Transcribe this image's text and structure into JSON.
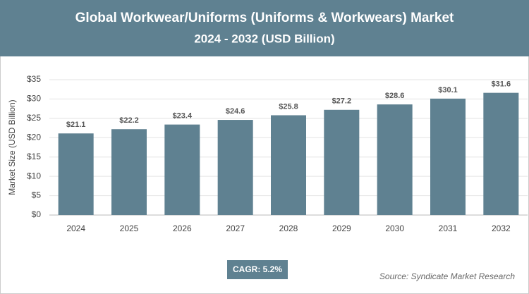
{
  "chart_data": {
    "type": "bar",
    "title": "Global Workwear/Uniforms (Uniforms & Workwears) Market",
    "subtitle": "2024 - 2032 (USD Billion)",
    "y_label": "Market Size (USD Billion)",
    "categories": [
      "2024",
      "2025",
      "2026",
      "2027",
      "2028",
      "2029",
      "2030",
      "2031",
      "2032"
    ],
    "values": [
      21.1,
      22.2,
      23.4,
      24.6,
      25.8,
      27.2,
      28.6,
      30.1,
      31.6
    ],
    "value_labels": [
      "$21.1",
      "$22.2",
      "$23.4",
      "$24.6",
      "$25.8",
      "$27.2",
      "$28.6",
      "$30.1",
      "$31.6"
    ],
    "color": "#5f8191",
    "ylim": [
      0,
      35
    ],
    "yticks": [
      {
        "value": 0,
        "label": "$0"
      },
      {
        "value": 5,
        "label": "$5"
      },
      {
        "value": 10,
        "label": "$10"
      },
      {
        "value": 15,
        "label": "$15"
      },
      {
        "value": 20,
        "label": "$20"
      },
      {
        "value": 25,
        "label": "$25"
      },
      {
        "value": 30,
        "label": "$30"
      },
      {
        "value": 35,
        "label": "$35"
      }
    ],
    "grid": true,
    "annotations": [
      "CAGR: 5.2%"
    ],
    "source": "Source: Syndicate Market Research"
  }
}
